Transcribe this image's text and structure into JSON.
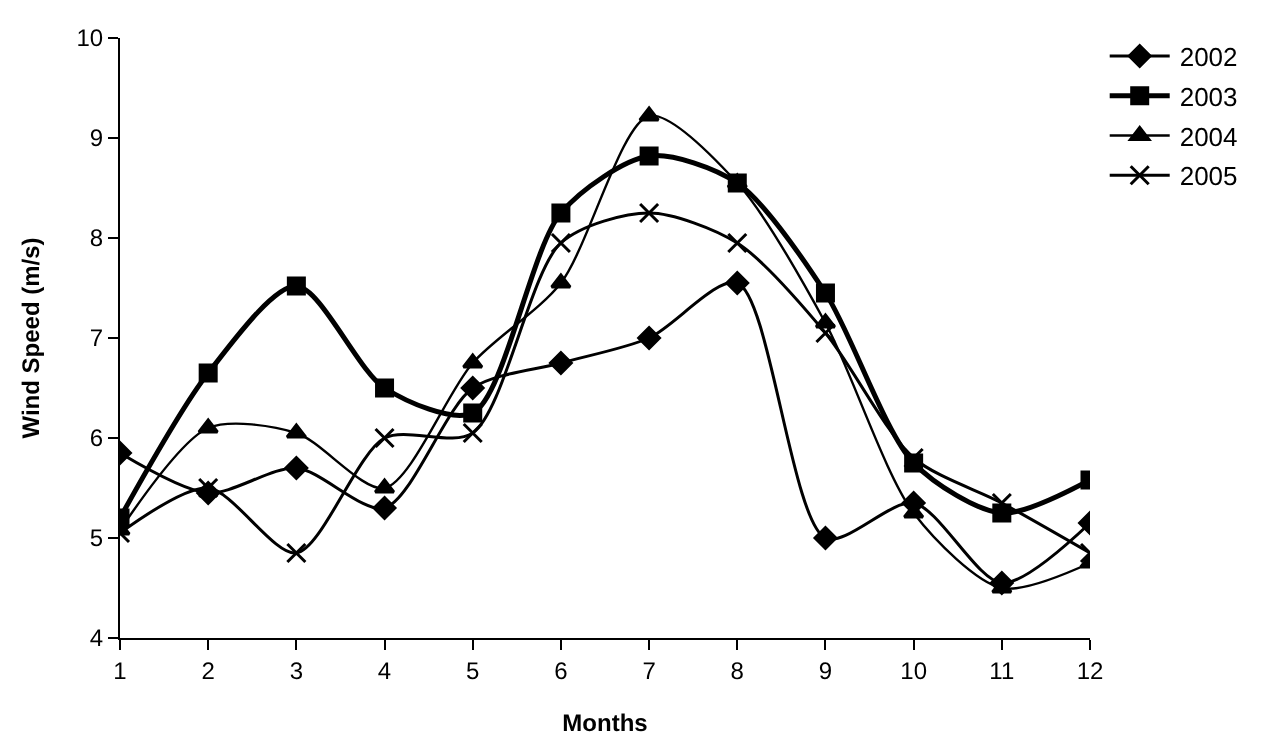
{
  "chart_data": {
    "type": "line",
    "xlabel": "Months",
    "ylabel": "Wind Speed (m/s)",
    "x": [
      1,
      2,
      3,
      4,
      5,
      6,
      7,
      8,
      9,
      10,
      11,
      12
    ],
    "xlim": [
      1,
      12
    ],
    "xticks": [
      1,
      2,
      3,
      4,
      5,
      6,
      7,
      8,
      9,
      10,
      11,
      12
    ],
    "ylim": [
      4,
      10
    ],
    "yticks": [
      4,
      5,
      6,
      7,
      8,
      9,
      10
    ],
    "legend": "top right",
    "line_style": "solid",
    "series": [
      {
        "name": "2002",
        "color": "#000000",
        "marker": "diamond",
        "values": [
          5.85,
          5.45,
          5.7,
          5.3,
          6.5,
          6.75,
          7.0,
          7.55,
          5.0,
          5.35,
          4.55,
          5.15
        ]
      },
      {
        "name": "2003",
        "color": "#000000",
        "marker": "square",
        "values": [
          5.2,
          6.65,
          7.52,
          6.5,
          6.25,
          8.25,
          8.82,
          8.55,
          7.45,
          5.75,
          5.25,
          5.58
        ]
      },
      {
        "name": "2004",
        "color": "#000000",
        "marker": "triangle",
        "values": [
          5.08,
          6.1,
          6.05,
          5.5,
          6.75,
          7.55,
          9.22,
          8.55,
          7.15,
          5.25,
          4.5,
          4.75
        ]
      },
      {
        "name": "2005",
        "color": "#000000",
        "marker": "cross",
        "values": [
          5.05,
          5.5,
          4.85,
          6.0,
          6.05,
          7.95,
          8.25,
          7.95,
          7.05,
          5.8,
          5.35,
          4.85
        ]
      }
    ]
  }
}
